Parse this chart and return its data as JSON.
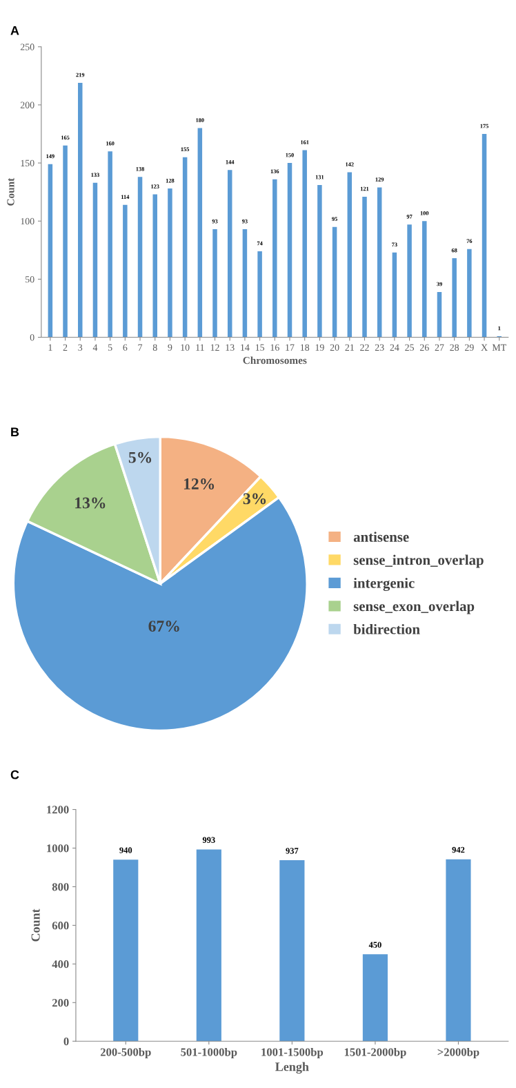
{
  "chart_data": [
    {
      "type": "bar",
      "annotations": [
        "A"
      ],
      "xlabel": "Chromosomes",
      "ylabel": "Count",
      "color": "#5b9bd5",
      "data_labels": true,
      "ylim": [
        0,
        250
      ],
      "yticks": [
        0,
        50,
        100,
        150,
        200,
        250
      ],
      "categories": [
        "1",
        "2",
        "3",
        "4",
        "5",
        "6",
        "7",
        "8",
        "9",
        "10",
        "11",
        "12",
        "13",
        "14",
        "15",
        "16",
        "17",
        "18",
        "19",
        "20",
        "21",
        "22",
        "23",
        "24",
        "25",
        "26",
        "27",
        "28",
        "29",
        "X",
        "MT"
      ],
      "values": [
        149,
        165,
        219,
        133,
        160,
        114,
        138,
        123,
        128,
        155,
        180,
        93,
        144,
        93,
        74,
        136,
        150,
        161,
        131,
        95,
        142,
        121,
        129,
        73,
        97,
        100,
        39,
        68,
        76,
        175,
        1
      ]
    },
    {
      "type": "pie",
      "annotations": [
        "B"
      ],
      "legend": "right",
      "value_labels": [
        "12%",
        "3%",
        "67%",
        "13%",
        "5%"
      ],
      "categories": [
        "antisense",
        "sense_intron_overlap",
        "intergenic",
        "sense_exon_overlap",
        "bidirection"
      ],
      "values": [
        12,
        3,
        67,
        13,
        5
      ],
      "colors": [
        "#f4b183",
        "#ffd966",
        "#5b9bd5",
        "#a9d18e",
        "#bdd7ee"
      ]
    },
    {
      "type": "bar",
      "annotations": [
        "C"
      ],
      "xlabel": "Lengh",
      "ylabel": "Count",
      "color": "#5b9bd5",
      "data_labels": true,
      "ylim": [
        0,
        1200
      ],
      "yticks": [
        0,
        200,
        400,
        600,
        800,
        1000,
        1200
      ],
      "categories": [
        "200-500bp",
        "501-1000bp",
        "1001-1500bp",
        "1501-2000bp",
        ">2000bp"
      ],
      "values": [
        940,
        993,
        937,
        450,
        942
      ]
    }
  ]
}
